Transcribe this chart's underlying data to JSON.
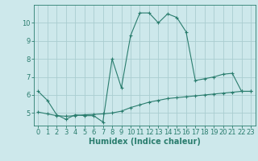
{
  "line1_x": [
    0,
    1,
    2,
    3,
    4,
    5,
    6,
    7,
    8,
    9,
    10,
    11,
    12,
    13,
    14,
    15,
    16,
    17,
    18,
    19,
    20,
    21,
    22,
    23
  ],
  "line1_y": [
    6.2,
    5.7,
    4.9,
    4.65,
    4.9,
    4.85,
    4.85,
    4.5,
    8.0,
    6.4,
    9.3,
    10.55,
    10.55,
    10.0,
    10.5,
    10.3,
    9.5,
    6.8,
    6.9,
    7.0,
    7.15,
    7.2,
    6.2,
    6.2
  ],
  "line2_x": [
    0,
    1,
    2,
    3,
    4,
    5,
    6,
    7,
    8,
    9,
    10,
    11,
    12,
    13,
    14,
    15,
    16,
    17,
    18,
    19,
    20,
    21,
    22,
    23
  ],
  "line2_y": [
    5.05,
    4.95,
    4.85,
    4.82,
    4.85,
    4.9,
    4.92,
    4.95,
    5.0,
    5.1,
    5.3,
    5.45,
    5.6,
    5.7,
    5.8,
    5.85,
    5.9,
    5.95,
    6.0,
    6.05,
    6.1,
    6.15,
    6.2,
    6.2
  ],
  "line_color": "#2a7d6e",
  "bg_color": "#cde8eb",
  "grid_color": "#aacdd0",
  "xlabel": "Humidex (Indice chaleur)",
  "xlabel_fontsize": 7,
  "tick_fontsize": 6,
  "xlim": [
    -0.5,
    23.5
  ],
  "ylim": [
    4.3,
    11.0
  ],
  "yticks": [
    5,
    6,
    7,
    8,
    9,
    10
  ],
  "xticks": [
    0,
    1,
    2,
    3,
    4,
    5,
    6,
    7,
    8,
    9,
    10,
    11,
    12,
    13,
    14,
    15,
    16,
    17,
    18,
    19,
    20,
    21,
    22,
    23
  ]
}
